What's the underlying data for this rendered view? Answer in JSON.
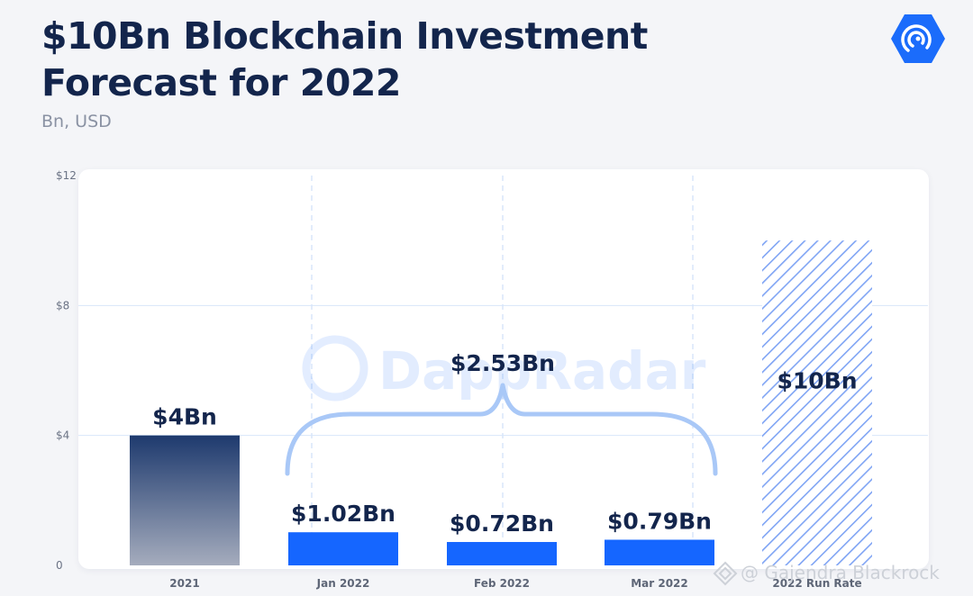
{
  "header": {
    "title_line1": "$10Bn Blockchain Investment",
    "title_line2": "Forecast for 2022",
    "subtitle": "Bn, USD"
  },
  "logo": {
    "icon": "dappradar-radar-icon",
    "color": "#1b6cfb"
  },
  "watermark": {
    "brand_text": "DappRadar",
    "credit_text": "@ Gajendra Blackrock",
    "icon": "diamond-icon"
  },
  "colors": {
    "accent": "#1566ff",
    "dark_bar_top": "#1e3a6e",
    "dark_bar_bottom": "#a5acbd",
    "hatch": "#7fa4f4",
    "brace": "#a9c8f7",
    "gridline": "#d8e6fa",
    "title": "#13254c"
  },
  "chart_data": {
    "type": "bar",
    "title": "$10Bn Blockchain Investment Forecast for 2022",
    "subtitle": "Bn, USD",
    "categories": [
      "2021",
      "Jan 2022",
      "Feb 2022",
      "Mar 2022",
      "2022 Run Rate"
    ],
    "values": [
      4,
      1.02,
      0.72,
      0.79,
      10
    ],
    "data_labels": [
      "$4Bn",
      "$1.02Bn",
      "$0.72Bn",
      "$0.79Bn",
      "$10Bn"
    ],
    "bar_styles": [
      "gradient-navy",
      "solid-blue",
      "solid-blue",
      "solid-blue",
      "hatched-blue"
    ],
    "ylim": [
      0,
      12
    ],
    "yticks": [
      0,
      4,
      8,
      12
    ],
    "ytick_labels": [
      "0",
      "$4",
      "$8",
      "$12"
    ],
    "grid": true,
    "annotations": [
      {
        "type": "brace",
        "spans": [
          "Jan 2022",
          "Feb 2022",
          "Mar 2022"
        ],
        "label": "$2.53Bn"
      }
    ]
  }
}
